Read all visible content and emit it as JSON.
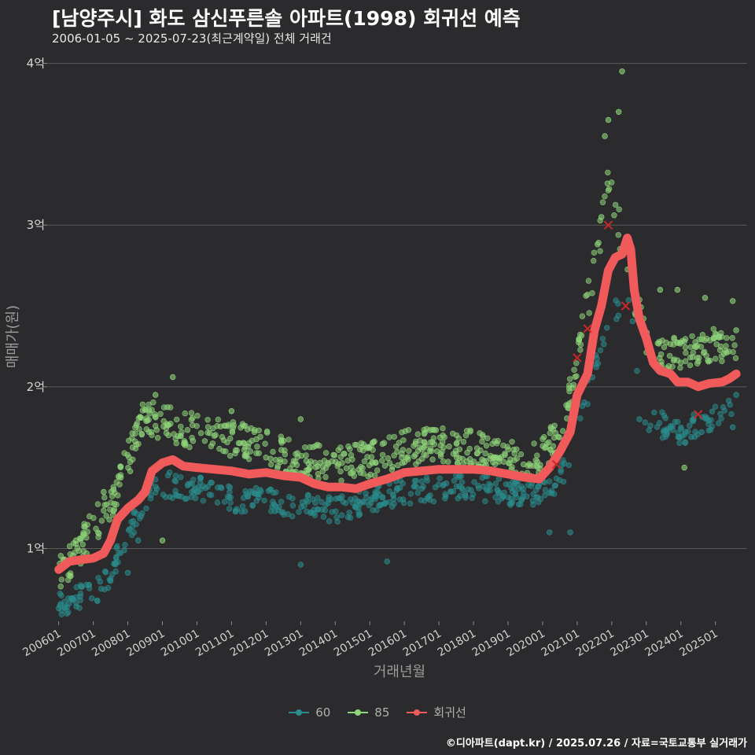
{
  "header": {
    "title": "[남양주시] 화도 삼신푸른솔 아파트(1998) 회귀선 예측",
    "subtitle": "2006-01-05 ~ 2025-07-23(최근계약일) 전체 거래건"
  },
  "caption": "©디아파트(dapt.kr) / 2025.07.26 / 자료=국토교통부 실거래가",
  "colors": {
    "background": "#2b2b2d",
    "grid": "#5a5a5a",
    "series_60": "#2a8c8c",
    "series_85": "#8fd67a",
    "regression": "#f05a5a"
  },
  "chart_data": {
    "type": "scatter",
    "xlabel": "거래년월",
    "ylabel": "매매가(원)",
    "x_range": [
      "2005-09",
      "2025-12"
    ],
    "ylim": [
      0.55,
      4.1
    ],
    "y_unit": "억",
    "y_ticks": [
      {
        "value": 1,
        "label": "1억"
      },
      {
        "value": 2,
        "label": "2억"
      },
      {
        "value": 3,
        "label": "3억"
      },
      {
        "value": 4,
        "label": "4억"
      }
    ],
    "x_ticks": [
      "200601",
      "200701",
      "200801",
      "200901",
      "201001",
      "201101",
      "201201",
      "201301",
      "201401",
      "201501",
      "201601",
      "201701",
      "201801",
      "201901",
      "202001",
      "202101",
      "202201",
      "202301",
      "202401",
      "202501"
    ],
    "legend": {
      "position": "bottom",
      "entries": [
        "60",
        "85",
        "회귀선"
      ]
    },
    "grid": true,
    "series": [
      {
        "name": "60",
        "type": "scatter",
        "trend": [
          [
            2006.0,
            0.65
          ],
          [
            2007.0,
            0.72
          ],
          [
            2007.5,
            0.85
          ],
          [
            2008.0,
            1.1
          ],
          [
            2008.6,
            1.35
          ],
          [
            2009.0,
            1.4
          ],
          [
            2010.0,
            1.37
          ],
          [
            2011.0,
            1.3
          ],
          [
            2012.0,
            1.3
          ],
          [
            2013.0,
            1.27
          ],
          [
            2014.0,
            1.24
          ],
          [
            2015.0,
            1.3
          ],
          [
            2016.0,
            1.35
          ],
          [
            2017.0,
            1.37
          ],
          [
            2018.0,
            1.38
          ],
          [
            2019.0,
            1.35
          ],
          [
            2019.9,
            1.33
          ],
          [
            2020.5,
            1.45
          ],
          [
            2020.9,
            1.6
          ],
          [
            2021.4,
            2.05
          ],
          [
            2022.0,
            2.45
          ],
          [
            2022.5,
            2.5
          ],
          [
            2023.0,
            1.8
          ],
          [
            2024.0,
            1.72
          ],
          [
            2025.5,
            1.85
          ]
        ],
        "highlights": [
          [
            2006.0,
            0.63
          ],
          [
            2006.3,
            0.66
          ],
          [
            2007.5,
            0.8
          ],
          [
            2008.0,
            0.85
          ],
          [
            2008.3,
            1.05
          ],
          [
            2013.0,
            0.9
          ],
          [
            2015.5,
            0.92
          ],
          [
            2020.2,
            1.1
          ],
          [
            2020.8,
            1.1
          ],
          [
            2022.8,
            1.8
          ],
          [
            2023.5,
            1.72
          ],
          [
            2024.3,
            1.69
          ],
          [
            2024.6,
            1.72
          ],
          [
            2025.5,
            1.75
          ],
          [
            2025.6,
            1.95
          ]
        ]
      },
      {
        "name": "85",
        "type": "scatter",
        "trend": [
          [
            2006.0,
            0.85
          ],
          [
            2006.5,
            0.95
          ],
          [
            2007.0,
            1.15
          ],
          [
            2007.5,
            1.25
          ],
          [
            2008.0,
            1.55
          ],
          [
            2008.5,
            1.82
          ],
          [
            2009.0,
            1.78
          ],
          [
            2010.0,
            1.72
          ],
          [
            2011.0,
            1.68
          ],
          [
            2012.0,
            1.62
          ],
          [
            2013.0,
            1.55
          ],
          [
            2014.0,
            1.52
          ],
          [
            2015.0,
            1.55
          ],
          [
            2016.0,
            1.62
          ],
          [
            2017.0,
            1.65
          ],
          [
            2018.0,
            1.62
          ],
          [
            2019.0,
            1.55
          ],
          [
            2019.9,
            1.55
          ],
          [
            2020.5,
            1.72
          ],
          [
            2020.9,
            2.05
          ],
          [
            2021.2,
            2.4
          ],
          [
            2021.6,
            2.85
          ],
          [
            2021.9,
            3.3
          ],
          [
            2022.2,
            3.0
          ],
          [
            2022.6,
            2.6
          ],
          [
            2023.0,
            2.3
          ],
          [
            2023.5,
            2.2
          ],
          [
            2024.0,
            2.2
          ],
          [
            2024.5,
            2.25
          ],
          [
            2025.5,
            2.25
          ]
        ],
        "highlights": [
          [
            2006.5,
            1.05
          ],
          [
            2007.3,
            1.35
          ],
          [
            2008.8,
            1.95
          ],
          [
            2009.3,
            2.06
          ],
          [
            2009.0,
            1.05
          ],
          [
            2011.0,
            1.85
          ],
          [
            2013.0,
            1.8
          ],
          [
            2021.8,
            3.55
          ],
          [
            2021.9,
            3.65
          ],
          [
            2022.2,
            3.7
          ],
          [
            2022.3,
            3.95
          ],
          [
            2021.7,
            3.05
          ],
          [
            2023.4,
            2.6
          ],
          [
            2023.9,
            2.6
          ],
          [
            2024.7,
            2.55
          ],
          [
            2025.5,
            2.53
          ],
          [
            2024.1,
            1.5
          ],
          [
            2025.6,
            2.35
          ]
        ]
      },
      {
        "name": "회귀선",
        "type": "line",
        "points": [
          [
            2006.0,
            0.87
          ],
          [
            2006.3,
            0.92
          ],
          [
            2006.6,
            0.93
          ],
          [
            2007.0,
            0.94
          ],
          [
            2007.3,
            0.97
          ],
          [
            2007.5,
            1.05
          ],
          [
            2007.7,
            1.18
          ],
          [
            2008.0,
            1.25
          ],
          [
            2008.3,
            1.3
          ],
          [
            2008.5,
            1.35
          ],
          [
            2008.7,
            1.48
          ],
          [
            2009.0,
            1.53
          ],
          [
            2009.3,
            1.55
          ],
          [
            2009.6,
            1.51
          ],
          [
            2010.0,
            1.5
          ],
          [
            2010.5,
            1.49
          ],
          [
            2011.0,
            1.48
          ],
          [
            2011.5,
            1.46
          ],
          [
            2012.0,
            1.47
          ],
          [
            2012.5,
            1.45
          ],
          [
            2013.0,
            1.44
          ],
          [
            2013.4,
            1.4
          ],
          [
            2013.8,
            1.38
          ],
          [
            2014.2,
            1.38
          ],
          [
            2014.6,
            1.37
          ],
          [
            2015.0,
            1.4
          ],
          [
            2015.5,
            1.43
          ],
          [
            2016.0,
            1.47
          ],
          [
            2016.5,
            1.48
          ],
          [
            2017.0,
            1.49
          ],
          [
            2017.5,
            1.49
          ],
          [
            2018.0,
            1.49
          ],
          [
            2018.5,
            1.48
          ],
          [
            2019.0,
            1.46
          ],
          [
            2019.5,
            1.44
          ],
          [
            2019.9,
            1.43
          ],
          [
            2020.2,
            1.5
          ],
          [
            2020.5,
            1.6
          ],
          [
            2020.8,
            1.72
          ],
          [
            2021.0,
            1.95
          ],
          [
            2021.3,
            2.08
          ],
          [
            2021.5,
            2.35
          ],
          [
            2021.7,
            2.5
          ],
          [
            2021.9,
            2.72
          ],
          [
            2022.1,
            2.8
          ],
          [
            2022.3,
            2.82
          ],
          [
            2022.45,
            2.92
          ],
          [
            2022.55,
            2.85
          ],
          [
            2022.65,
            2.6
          ],
          [
            2022.8,
            2.42
          ],
          [
            2023.0,
            2.3
          ],
          [
            2023.2,
            2.15
          ],
          [
            2023.4,
            2.1
          ],
          [
            2023.7,
            2.08
          ],
          [
            2023.9,
            2.03
          ],
          [
            2024.2,
            2.03
          ],
          [
            2024.5,
            2.0
          ],
          [
            2024.8,
            2.02
          ],
          [
            2025.2,
            2.03
          ],
          [
            2025.4,
            2.05
          ],
          [
            2025.6,
            2.08
          ]
        ]
      }
    ],
    "markers": {
      "shape": "x",
      "points": [
        [
          2020.4,
          1.52
        ],
        [
          2021.0,
          2.18
        ],
        [
          2021.3,
          2.36
        ],
        [
          2021.9,
          3.0
        ],
        [
          2022.4,
          2.5
        ],
        [
          2024.5,
          1.83
        ]
      ]
    }
  }
}
